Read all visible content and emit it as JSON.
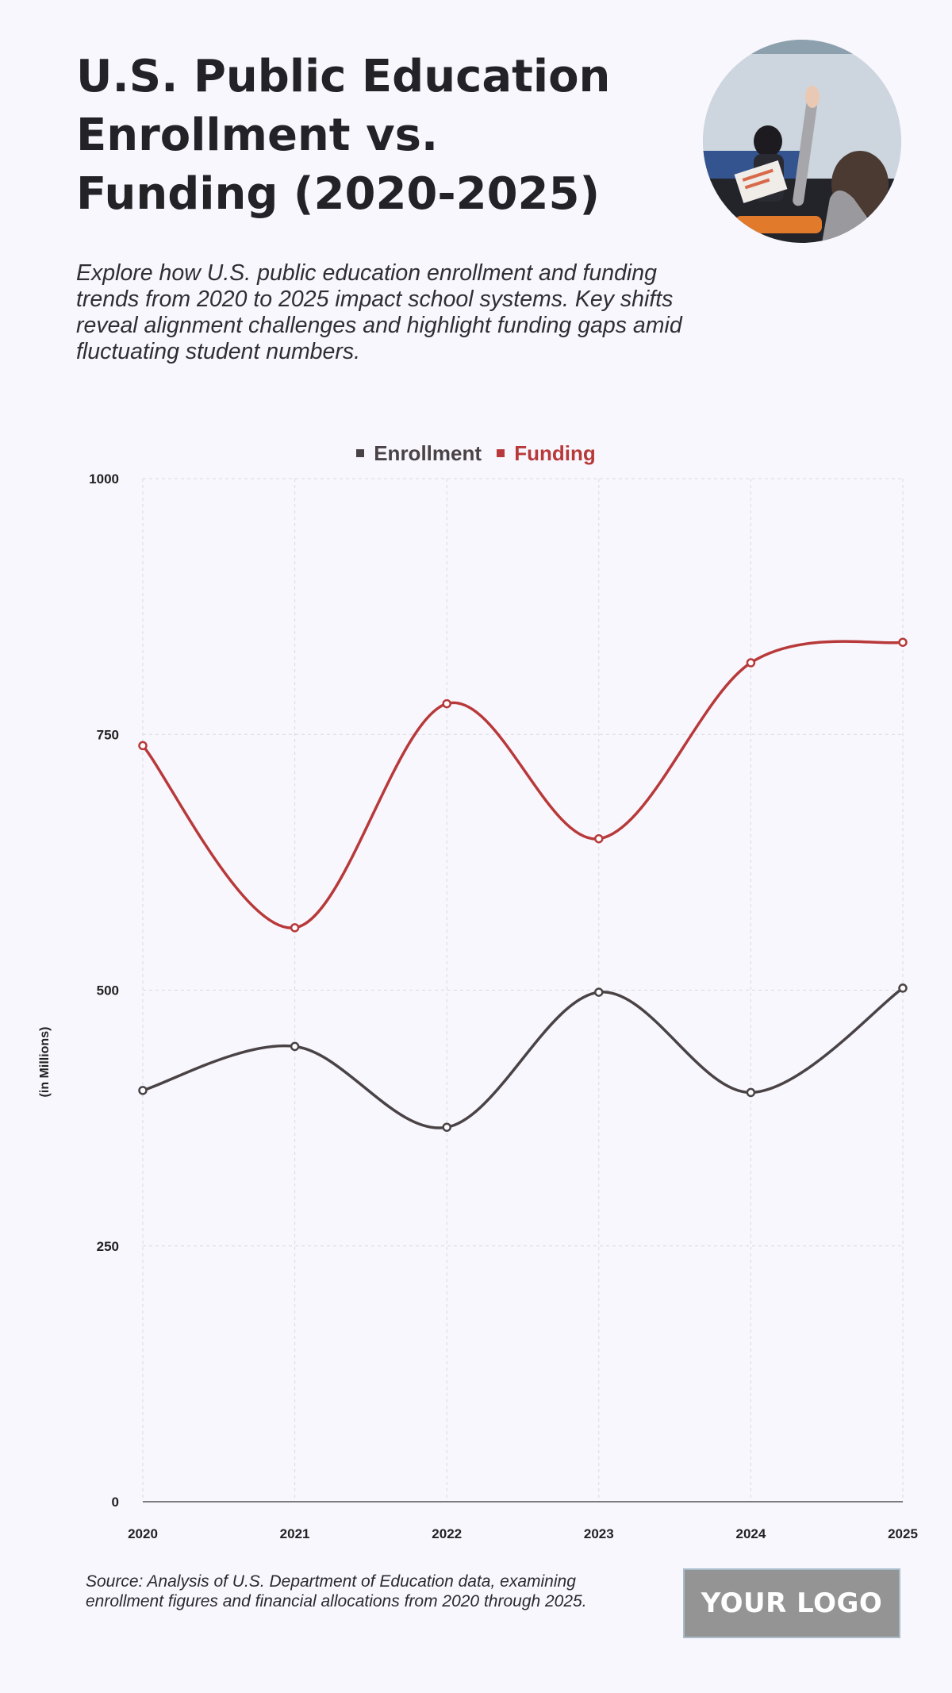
{
  "header": {
    "title": "U.S. Public Education Enrollment vs. Funding (2020-2025)",
    "subtitle": "Explore how U.S. public education enrollment and funding trends from 2020 to 2025 impact school systems. Key shifts reveal alignment challenges and highlight funding gaps amid fluctuating student numbers."
  },
  "photo": {
    "icon": "classroom-photo"
  },
  "footer": {
    "source": "Source: Analysis of U.S. Department of Education data, examining enrollment figures and financial allocations from 2020 through 2025.",
    "logo_text": "YOUR LOGO"
  },
  "chart_data": {
    "type": "line",
    "title": "",
    "xlabel": "",
    "ylabel": "(in Millions)",
    "x": [
      "2020",
      "2021",
      "2022",
      "2023",
      "2024",
      "2025"
    ],
    "ylim": [
      0,
      1000
    ],
    "yticks": [
      0,
      250,
      500,
      750,
      1000
    ],
    "grid": true,
    "legend_position": "top-center",
    "series": [
      {
        "name": "Enrollment",
        "color": "#4a4346",
        "values": [
          402,
          445,
          366,
          498,
          400,
          502
        ]
      },
      {
        "name": "Funding",
        "color": "#b8393a",
        "values": [
          739,
          561,
          780,
          648,
          820,
          840
        ]
      }
    ]
  },
  "colors": {
    "background": "#f8f7fd",
    "enrollment": "#4a4346",
    "funding": "#b8393a",
    "grid": "#d9d9e3"
  }
}
